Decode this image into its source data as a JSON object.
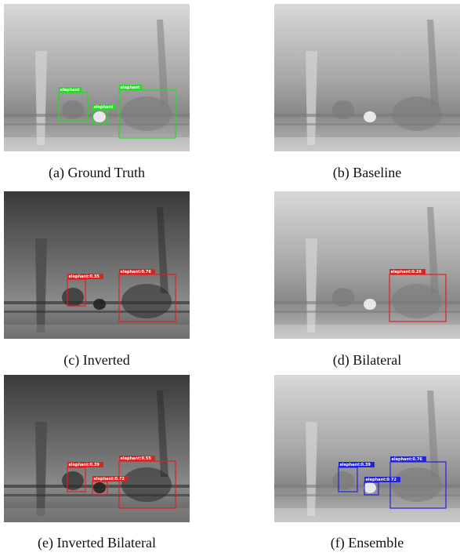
{
  "panels": [
    {
      "caption": "(a) Ground Truth",
      "color": "#22dd22",
      "boxes": [
        {
          "label": "elephant"
        },
        {
          "label": "elephant"
        },
        {
          "label": "elephant"
        }
      ]
    },
    {
      "caption": "(b) Baseline",
      "color": "#dd2222",
      "boxes": []
    },
    {
      "caption": "(c) Inverted",
      "color": "#dd2222",
      "boxes": [
        {
          "label": "elephant:0.35"
        },
        {
          "label": "elephant:0.76"
        }
      ]
    },
    {
      "caption": "(d) Bilateral",
      "color": "#dd2222",
      "boxes": [
        {
          "label": "elephant:0.28"
        }
      ]
    },
    {
      "caption": "(e) Inverted Bilateral",
      "color": "#dd2222",
      "boxes": [
        {
          "label": "elephant:0.39"
        },
        {
          "label": "elephant:0.72"
        },
        {
          "label": "elephant:0.55"
        }
      ]
    },
    {
      "caption": "(f) Ensemble",
      "color": "#2222dd",
      "boxes": [
        {
          "label": "elephant:0.39"
        },
        {
          "label": "elephant:0.72"
        },
        {
          "label": "elephant:0.76"
        }
      ]
    }
  ]
}
